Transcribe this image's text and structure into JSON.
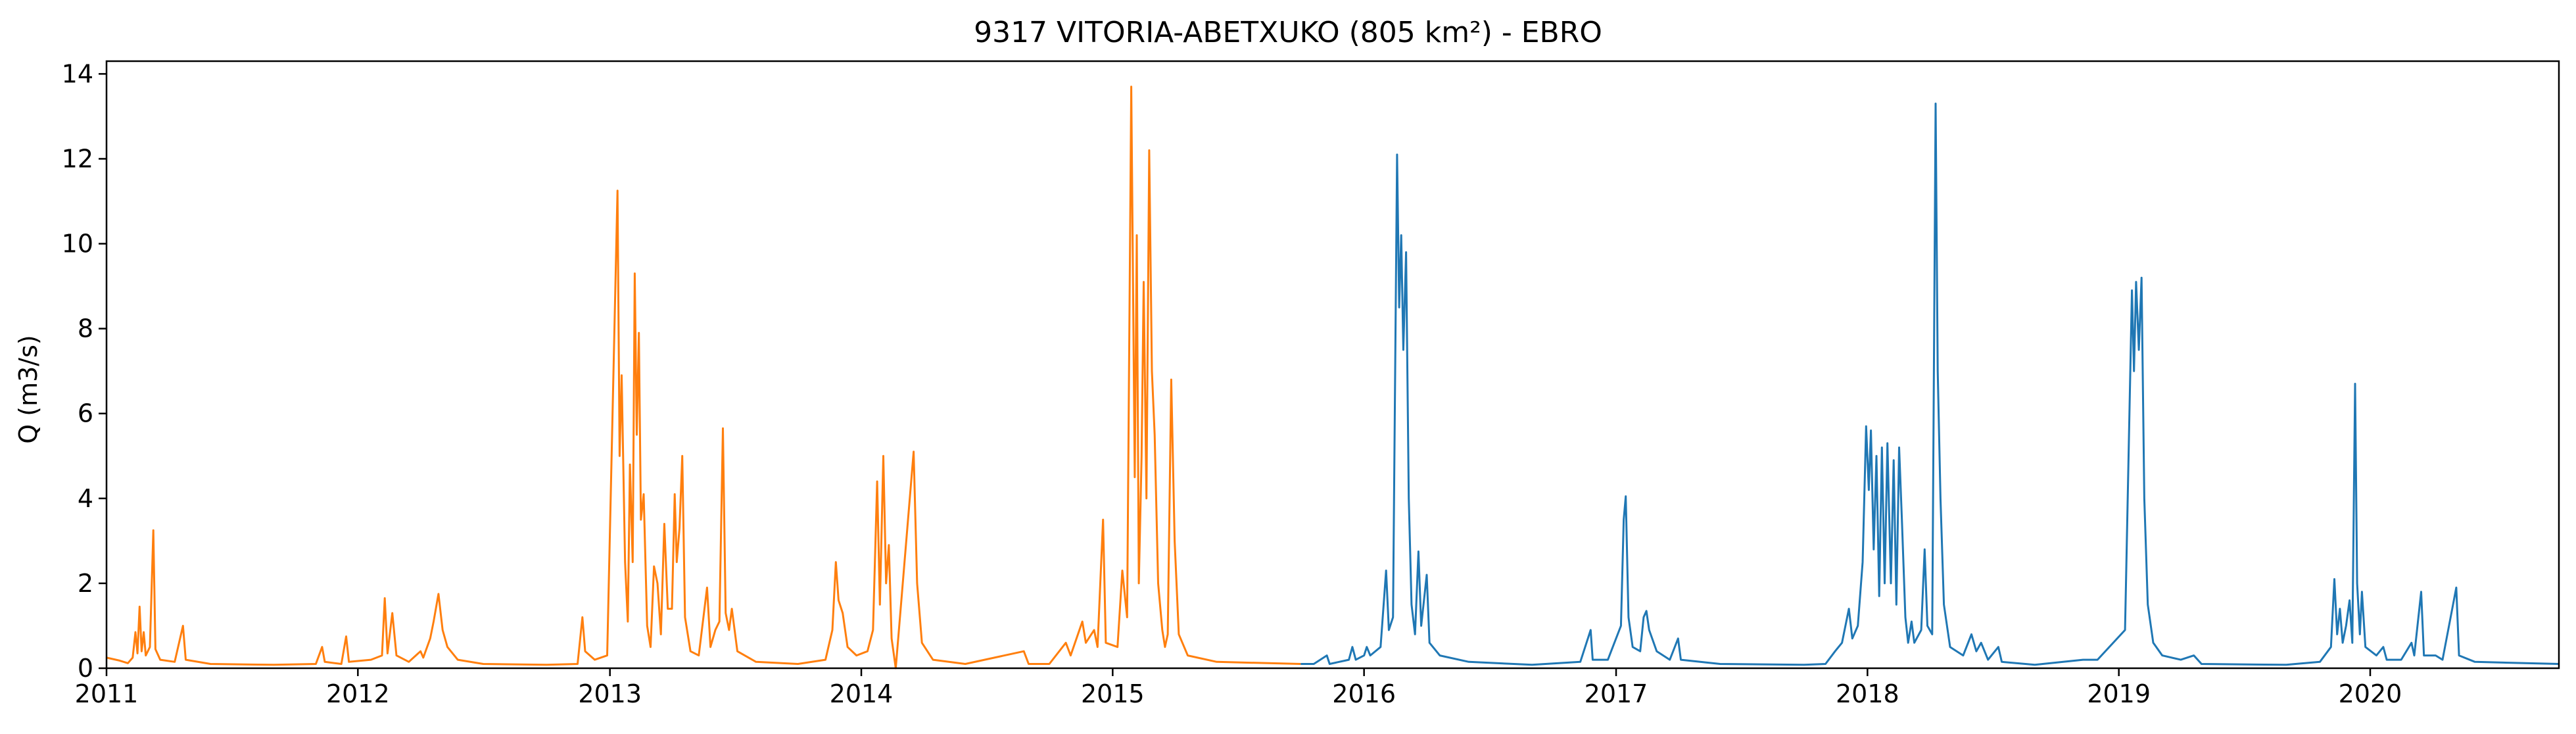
{
  "chart_data": {
    "type": "line",
    "title": "9317 VITORIA-ABETXUKO (805 km²) - EBRO",
    "xlabel": "",
    "ylabel": "Q (m3/s)",
    "xlim": [
      "2011-01-01",
      "2020-10-01"
    ],
    "ylim": [
      0,
      14.3
    ],
    "x_ticks": [
      "2011",
      "2012",
      "2013",
      "2014",
      "2015",
      "2016",
      "2017",
      "2018",
      "2019",
      "2020"
    ],
    "y_ticks": [
      "0",
      "2",
      "4",
      "6",
      "8",
      "10",
      "12",
      "14"
    ],
    "grid": false,
    "legend": false,
    "series": [
      {
        "color": "#ff7f0e",
        "points": [
          [
            "2011-01-01",
            0.25
          ],
          [
            "2011-01-20",
            0.18
          ],
          [
            "2011-02-01",
            0.12
          ],
          [
            "2011-02-08",
            0.25
          ],
          [
            "2011-02-12",
            0.85
          ],
          [
            "2011-02-15",
            0.35
          ],
          [
            "2011-02-18",
            1.45
          ],
          [
            "2011-02-21",
            0.4
          ],
          [
            "2011-02-24",
            0.85
          ],
          [
            "2011-02-27",
            0.3
          ],
          [
            "2011-03-05",
            0.5
          ],
          [
            "2011-03-10",
            3.25
          ],
          [
            "2011-03-13",
            0.45
          ],
          [
            "2011-03-20",
            0.2
          ],
          [
            "2011-04-10",
            0.15
          ],
          [
            "2011-04-22",
            1.0
          ],
          [
            "2011-04-26",
            0.2
          ],
          [
            "2011-06-01",
            0.1
          ],
          [
            "2011-09-01",
            0.08
          ],
          [
            "2011-11-01",
            0.1
          ],
          [
            "2011-11-10",
            0.5
          ],
          [
            "2011-11-14",
            0.15
          ],
          [
            "2011-12-08",
            0.1
          ],
          [
            "2011-12-15",
            0.75
          ],
          [
            "2011-12-19",
            0.15
          ],
          [
            "2012-01-20",
            0.2
          ],
          [
            "2012-02-05",
            0.3
          ],
          [
            "2012-02-09",
            1.65
          ],
          [
            "2012-02-13",
            0.35
          ],
          [
            "2012-02-20",
            1.3
          ],
          [
            "2012-02-26",
            0.3
          ],
          [
            "2012-03-15",
            0.15
          ],
          [
            "2012-04-01",
            0.4
          ],
          [
            "2012-04-05",
            0.25
          ],
          [
            "2012-04-15",
            0.7
          ],
          [
            "2012-04-20",
            1.1
          ],
          [
            "2012-04-27",
            1.75
          ],
          [
            "2012-05-03",
            0.9
          ],
          [
            "2012-05-10",
            0.5
          ],
          [
            "2012-05-25",
            0.2
          ],
          [
            "2012-07-01",
            0.1
          ],
          [
            "2012-10-01",
            0.08
          ],
          [
            "2012-11-15",
            0.1
          ],
          [
            "2012-11-22",
            1.2
          ],
          [
            "2012-11-26",
            0.4
          ],
          [
            "2012-12-10",
            0.2
          ],
          [
            "2012-12-28",
            0.3
          ],
          [
            "2013-01-12",
            11.25
          ],
          [
            "2013-01-15",
            5.0
          ],
          [
            "2013-01-18",
            6.9
          ],
          [
            "2013-01-23",
            2.5
          ],
          [
            "2013-01-27",
            1.1
          ],
          [
            "2013-01-30",
            4.8
          ],
          [
            "2013-02-03",
            2.5
          ],
          [
            "2013-02-06",
            9.3
          ],
          [
            "2013-02-09",
            5.5
          ],
          [
            "2013-02-12",
            7.9
          ],
          [
            "2013-02-15",
            3.5
          ],
          [
            "2013-02-19",
            4.1
          ],
          [
            "2013-02-24",
            1.0
          ],
          [
            "2013-03-01",
            0.5
          ],
          [
            "2013-03-06",
            2.4
          ],
          [
            "2013-03-11",
            2.0
          ],
          [
            "2013-03-16",
            0.8
          ],
          [
            "2013-03-21",
            3.4
          ],
          [
            "2013-03-26",
            1.4
          ],
          [
            "2013-04-01",
            1.4
          ],
          [
            "2013-04-05",
            4.1
          ],
          [
            "2013-04-08",
            2.5
          ],
          [
            "2013-04-12",
            3.3
          ],
          [
            "2013-04-16",
            5.0
          ],
          [
            "2013-04-20",
            1.2
          ],
          [
            "2013-04-28",
            0.4
          ],
          [
            "2013-05-10",
            0.3
          ],
          [
            "2013-05-22",
            1.9
          ],
          [
            "2013-05-27",
            0.5
          ],
          [
            "2013-06-03",
            0.9
          ],
          [
            "2013-06-09",
            1.1
          ],
          [
            "2013-06-14",
            5.65
          ],
          [
            "2013-06-18",
            1.3
          ],
          [
            "2013-06-23",
            0.9
          ],
          [
            "2013-06-27",
            1.4
          ],
          [
            "2013-07-05",
            0.4
          ],
          [
            "2013-08-01",
            0.15
          ],
          [
            "2013-10-01",
            0.1
          ],
          [
            "2013-11-10",
            0.2
          ],
          [
            "2013-11-20",
            0.9
          ],
          [
            "2013-11-25",
            2.5
          ],
          [
            "2013-11-29",
            1.6
          ],
          [
            "2013-12-05",
            1.3
          ],
          [
            "2013-12-12",
            0.5
          ],
          [
            "2013-12-25",
            0.3
          ],
          [
            "2014-01-10",
            0.4
          ],
          [
            "2014-01-18",
            0.9
          ],
          [
            "2014-01-24",
            4.4
          ],
          [
            "2014-01-28",
            1.5
          ],
          [
            "2014-02-02",
            5.0
          ],
          [
            "2014-02-06",
            2.0
          ],
          [
            "2014-02-10",
            2.9
          ],
          [
            "2014-02-14",
            0.7
          ],
          [
            "2014-02-20",
            0.0
          ],
          [
            "2014-03-18",
            5.1
          ],
          [
            "2014-03-23",
            2.0
          ],
          [
            "2014-03-30",
            0.6
          ],
          [
            "2014-04-15",
            0.2
          ],
          [
            "2014-06-01",
            0.1
          ],
          [
            "2014-08-25",
            0.4
          ],
          [
            "2014-09-01",
            0.1
          ],
          [
            "2014-10-01",
            0.1
          ],
          [
            "2014-10-25",
            0.6
          ],
          [
            "2014-11-01",
            0.3
          ],
          [
            "2014-11-18",
            1.1
          ],
          [
            "2014-11-23",
            0.6
          ],
          [
            "2014-12-05",
            0.9
          ],
          [
            "2014-12-10",
            0.5
          ],
          [
            "2014-12-18",
            3.5
          ],
          [
            "2014-12-22",
            0.6
          ],
          [
            "2015-01-08",
            0.5
          ],
          [
            "2015-01-15",
            2.3
          ],
          [
            "2015-01-22",
            1.2
          ],
          [
            "2015-01-28",
            13.7
          ],
          [
            "2015-02-02",
            4.5
          ],
          [
            "2015-02-05",
            10.2
          ],
          [
            "2015-02-08",
            2.0
          ],
          [
            "2015-02-12",
            5.0
          ],
          [
            "2015-02-15",
            9.1
          ],
          [
            "2015-02-19",
            4.0
          ],
          [
            "2015-02-23",
            12.2
          ],
          [
            "2015-02-27",
            7.0
          ],
          [
            "2015-03-03",
            5.5
          ],
          [
            "2015-03-08",
            2.0
          ],
          [
            "2015-03-14",
            0.9
          ],
          [
            "2015-03-18",
            0.5
          ],
          [
            "2015-03-22",
            0.8
          ],
          [
            "2015-03-27",
            6.8
          ],
          [
            "2015-04-01",
            3.0
          ],
          [
            "2015-04-07",
            0.8
          ],
          [
            "2015-04-20",
            0.3
          ],
          [
            "2015-06-01",
            0.15
          ],
          [
            "2015-10-01",
            0.1
          ]
        ]
      },
      {
        "color": "#1f77b4",
        "points": [
          [
            "2015-10-01",
            0.1
          ],
          [
            "2015-10-20",
            0.1
          ],
          [
            "2015-11-08",
            0.3
          ],
          [
            "2015-11-12",
            0.1
          ],
          [
            "2015-12-10",
            0.2
          ],
          [
            "2015-12-15",
            0.5
          ],
          [
            "2015-12-20",
            0.2
          ],
          [
            "2016-01-01",
            0.3
          ],
          [
            "2016-01-05",
            0.5
          ],
          [
            "2016-01-10",
            0.3
          ],
          [
            "2016-01-25",
            0.5
          ],
          [
            "2016-02-02",
            2.3
          ],
          [
            "2016-02-06",
            0.9
          ],
          [
            "2016-02-12",
            1.2
          ],
          [
            "2016-02-18",
            12.1
          ],
          [
            "2016-02-21",
            8.5
          ],
          [
            "2016-02-24",
            10.2
          ],
          [
            "2016-02-27",
            7.5
          ],
          [
            "2016-03-02",
            9.8
          ],
          [
            "2016-03-06",
            4.0
          ],
          [
            "2016-03-10",
            1.5
          ],
          [
            "2016-03-15",
            0.8
          ],
          [
            "2016-03-20",
            2.75
          ],
          [
            "2016-03-24",
            1.0
          ],
          [
            "2016-04-01",
            2.2
          ],
          [
            "2016-04-05",
            0.6
          ],
          [
            "2016-04-20",
            0.3
          ],
          [
            "2016-06-01",
            0.15
          ],
          [
            "2016-09-01",
            0.08
          ],
          [
            "2016-11-10",
            0.15
          ],
          [
            "2016-11-25",
            0.9
          ],
          [
            "2016-11-28",
            0.2
          ],
          [
            "2016-12-20",
            0.2
          ],
          [
            "2017-01-08",
            1.0
          ],
          [
            "2017-01-12",
            3.5
          ],
          [
            "2017-01-15",
            4.05
          ],
          [
            "2017-01-19",
            1.2
          ],
          [
            "2017-01-25",
            0.5
          ],
          [
            "2017-02-05",
            0.4
          ],
          [
            "2017-02-10",
            1.2
          ],
          [
            "2017-02-14",
            1.35
          ],
          [
            "2017-02-18",
            0.9
          ],
          [
            "2017-03-01",
            0.4
          ],
          [
            "2017-03-20",
            0.2
          ],
          [
            "2017-04-01",
            0.7
          ],
          [
            "2017-04-05",
            0.2
          ],
          [
            "2017-06-01",
            0.1
          ],
          [
            "2017-10-01",
            0.08
          ],
          [
            "2017-11-01",
            0.1
          ],
          [
            "2017-11-15",
            0.4
          ],
          [
            "2017-11-25",
            0.6
          ],
          [
            "2017-12-05",
            1.4
          ],
          [
            "2017-12-10",
            0.7
          ],
          [
            "2017-12-18",
            1.0
          ],
          [
            "2017-12-25",
            2.5
          ],
          [
            "2017-12-30",
            5.7
          ],
          [
            "2018-01-03",
            4.2
          ],
          [
            "2018-01-06",
            5.6
          ],
          [
            "2018-01-10",
            2.8
          ],
          [
            "2018-01-14",
            5.0
          ],
          [
            "2018-01-18",
            1.7
          ],
          [
            "2018-01-22",
            5.2
          ],
          [
            "2018-01-26",
            2.0
          ],
          [
            "2018-01-30",
            5.3
          ],
          [
            "2018-02-04",
            2.0
          ],
          [
            "2018-02-08",
            4.9
          ],
          [
            "2018-02-12",
            1.5
          ],
          [
            "2018-02-16",
            5.2
          ],
          [
            "2018-02-20",
            3.5
          ],
          [
            "2018-02-25",
            1.2
          ],
          [
            "2018-03-01",
            0.6
          ],
          [
            "2018-03-06",
            1.1
          ],
          [
            "2018-03-10",
            0.6
          ],
          [
            "2018-03-20",
            0.9
          ],
          [
            "2018-03-25",
            2.8
          ],
          [
            "2018-03-29",
            1.0
          ],
          [
            "2018-04-05",
            0.8
          ],
          [
            "2018-04-10",
            13.3
          ],
          [
            "2018-04-13",
            7.0
          ],
          [
            "2018-04-17",
            4.0
          ],
          [
            "2018-04-22",
            1.5
          ],
          [
            "2018-05-01",
            0.5
          ],
          [
            "2018-05-20",
            0.3
          ],
          [
            "2018-06-01",
            0.8
          ],
          [
            "2018-06-08",
            0.4
          ],
          [
            "2018-06-15",
            0.6
          ],
          [
            "2018-06-25",
            0.2
          ],
          [
            "2018-07-10",
            0.5
          ],
          [
            "2018-07-15",
            0.15
          ],
          [
            "2018-09-01",
            0.08
          ],
          [
            "2018-11-10",
            0.2
          ],
          [
            "2018-12-01",
            0.2
          ],
          [
            "2019-01-10",
            0.9
          ],
          [
            "2019-01-20",
            8.9
          ],
          [
            "2019-01-23",
            7.0
          ],
          [
            "2019-01-26",
            9.1
          ],
          [
            "2019-01-30",
            7.5
          ],
          [
            "2019-02-03",
            9.2
          ],
          [
            "2019-02-07",
            4.0
          ],
          [
            "2019-02-12",
            1.5
          ],
          [
            "2019-02-20",
            0.6
          ],
          [
            "2019-03-05",
            0.3
          ],
          [
            "2019-04-01",
            0.2
          ],
          [
            "2019-04-20",
            0.3
          ],
          [
            "2019-05-01",
            0.1
          ],
          [
            "2019-09-01",
            0.08
          ],
          [
            "2019-10-20",
            0.15
          ],
          [
            "2019-11-05",
            0.5
          ],
          [
            "2019-11-10",
            2.1
          ],
          [
            "2019-11-14",
            0.8
          ],
          [
            "2019-11-18",
            1.4
          ],
          [
            "2019-11-22",
            0.6
          ],
          [
            "2019-11-27",
            1.0
          ],
          [
            "2019-12-02",
            1.6
          ],
          [
            "2019-12-06",
            0.6
          ],
          [
            "2019-12-10",
            6.7
          ],
          [
            "2019-12-13",
            2.0
          ],
          [
            "2019-12-17",
            0.8
          ],
          [
            "2019-12-20",
            1.8
          ],
          [
            "2019-12-25",
            0.5
          ],
          [
            "2020-01-10",
            0.3
          ],
          [
            "2020-01-20",
            0.5
          ],
          [
            "2020-01-25",
            0.2
          ],
          [
            "2020-02-15",
            0.2
          ],
          [
            "2020-03-01",
            0.6
          ],
          [
            "2020-03-05",
            0.3
          ],
          [
            "2020-03-15",
            1.8
          ],
          [
            "2020-03-19",
            0.3
          ],
          [
            "2020-04-05",
            0.3
          ],
          [
            "2020-04-15",
            0.2
          ],
          [
            "2020-05-05",
            1.9
          ],
          [
            "2020-05-09",
            0.3
          ],
          [
            "2020-06-01",
            0.15
          ],
          [
            "2020-10-01",
            0.1
          ]
        ]
      }
    ]
  }
}
